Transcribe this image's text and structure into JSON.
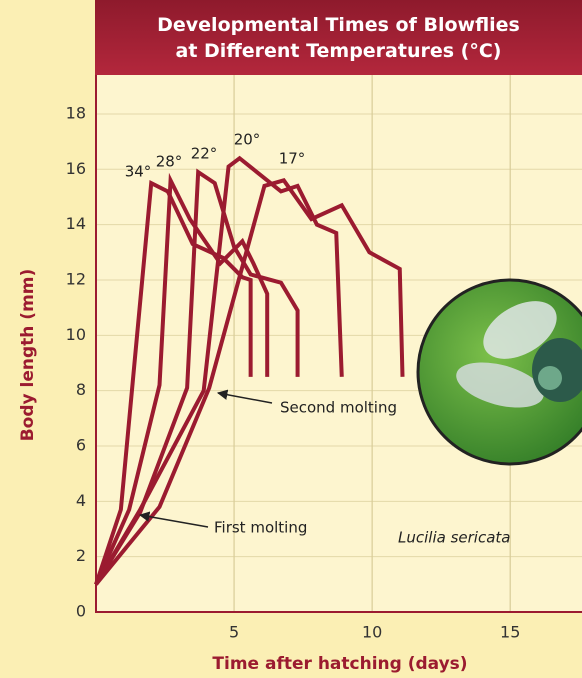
{
  "chart_data": {
    "type": "line",
    "title": "Developmental Times of Blowflies at Different Temperatures (°C)",
    "x_label": "Time after hatching (days)",
    "y_label": "Body length (mm)",
    "xlim": [
      0,
      17.6
    ],
    "ylim": [
      0,
      19.3
    ],
    "xticks": [
      5,
      10,
      15
    ],
    "yticks": [
      0,
      2,
      4,
      6,
      8,
      10,
      12,
      14,
      16,
      18
    ],
    "grid": true,
    "series": [
      {
        "name": "34°",
        "color": "#9b1b30",
        "x": [
          0,
          0.9,
          2.0,
          2.6,
          3.5,
          4.6,
          5.3,
          5.6,
          5.6
        ],
        "values": [
          1,
          3.7,
          15.5,
          15.2,
          13.3,
          12.8,
          12.1,
          12,
          8.5
        ]
      },
      {
        "name": "28°",
        "color": "#9b1b30",
        "x": [
          0,
          1.2,
          2.3,
          2.7,
          3.4,
          4.5,
          5.3,
          5.7,
          6.2,
          6.2
        ],
        "values": [
          1,
          3.7,
          8.2,
          15.6,
          14.2,
          12.6,
          13.4,
          12.6,
          11.5,
          8.5
        ]
      },
      {
        "name": "22°",
        "color": "#9b1b30",
        "x": [
          0,
          1.6,
          3.3,
          3.7,
          4.3,
          5.0,
          5.6,
          6.7,
          7.3,
          7.3
        ],
        "values": [
          1,
          3.6,
          8.1,
          15.9,
          15.5,
          13.2,
          12.2,
          11.9,
          10.9,
          8.5
        ]
      },
      {
        "name": "20°",
        "color": "#9b1b30",
        "x": [
          0,
          1.6,
          3.9,
          4.8,
          5.2,
          6.7,
          7.3,
          8.0,
          8.7,
          8.9
        ],
        "values": [
          1,
          3.7,
          8,
          16.1,
          16.4,
          15.2,
          15.4,
          14,
          13.7,
          8.5
        ]
      },
      {
        "name": "17°",
        "color": "#9b1b30",
        "x": [
          0,
          2.3,
          4.1,
          6.1,
          6.8,
          7.8,
          8.9,
          9.9,
          11.0,
          11.1
        ],
        "values": [
          1,
          3.8,
          8.1,
          15.4,
          15.6,
          14.2,
          14.7,
          13,
          12.4,
          8.5
        ]
      }
    ],
    "annotations": [
      "Second molting",
      "First molting",
      "Lucilia sericata"
    ]
  }
}
